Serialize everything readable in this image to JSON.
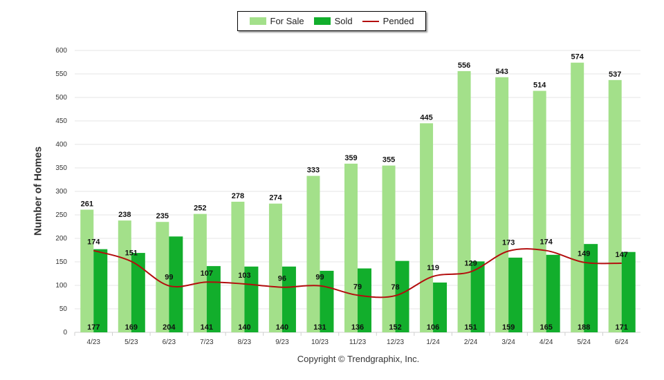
{
  "legend": {
    "for_sale": "For Sale",
    "sold": "Sold",
    "pended": "Pended"
  },
  "copyright": "Copyright © Trendgraphix, Inc.",
  "colors": {
    "for_sale": "#a3e08a",
    "sold": "#12ae2c",
    "pended": "#b30d0d",
    "grid": "#e6e6e6"
  },
  "chart_data": {
    "type": "bar",
    "ylabel": "Number of Homes",
    "xlabel": "",
    "ylim": [
      0,
      600
    ],
    "yticks": [
      0,
      50,
      100,
      150,
      200,
      250,
      300,
      350,
      400,
      450,
      500,
      550,
      600
    ],
    "grid": true,
    "legend_position": "top-center",
    "categories": [
      "4/23",
      "5/23",
      "6/23",
      "7/23",
      "8/23",
      "9/23",
      "10/23",
      "11/23",
      "12/23",
      "1/24",
      "2/24",
      "3/24",
      "4/24",
      "5/24",
      "6/24"
    ],
    "series": [
      {
        "name": "For Sale",
        "type": "bar",
        "values": [
          261,
          238,
          235,
          252,
          278,
          274,
          333,
          359,
          355,
          445,
          556,
          543,
          514,
          574,
          537
        ]
      },
      {
        "name": "Sold",
        "type": "bar",
        "values": [
          177,
          169,
          204,
          141,
          140,
          140,
          131,
          136,
          152,
          106,
          151,
          159,
          165,
          188,
          171
        ]
      },
      {
        "name": "Pended",
        "type": "line",
        "values": [
          174,
          151,
          99,
          107,
          103,
          96,
          99,
          79,
          78,
          119,
          129,
          173,
          174,
          149,
          147
        ]
      }
    ]
  }
}
